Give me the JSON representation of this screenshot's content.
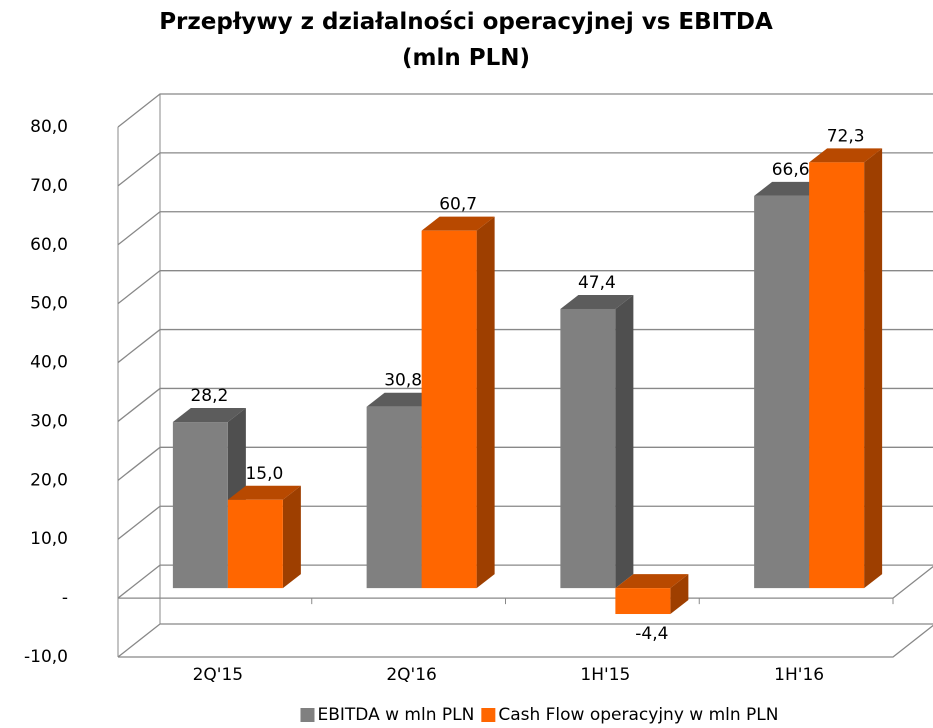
{
  "chart_data": {
    "type": "bar3d",
    "title": "Przepływy z działalności operacyjnej vs EBITDA (mln PLN)",
    "categories": [
      "2Q'15",
      "2Q'16",
      "1H'15",
      "1H'16"
    ],
    "series": [
      {
        "name": "EBITDA w mln PLN",
        "color": "#808080",
        "values": [
          28.2,
          30.8,
          47.4,
          66.6
        ],
        "value_labels": [
          "28,2",
          "30,8",
          "47,4",
          "66,6"
        ]
      },
      {
        "name": "Cash Flow operacyjny w mln PLN",
        "color": "#ff6600",
        "values": [
          15.0,
          60.7,
          -4.4,
          72.3
        ],
        "value_labels": [
          "15,0",
          "60,7",
          "-4,4",
          "72,3"
        ]
      }
    ],
    "ylim": [
      -10,
      80
    ],
    "yticks": [
      {
        "value": -10,
        "label": "-10,0"
      },
      {
        "value": 0,
        "label": "-"
      },
      {
        "value": 10,
        "label": "10,0"
      },
      {
        "value": 20,
        "label": "20,0"
      },
      {
        "value": 30,
        "label": "30,0"
      },
      {
        "value": 40,
        "label": "40,0"
      },
      {
        "value": 50,
        "label": "50,0"
      },
      {
        "value": 60,
        "label": "60,0"
      },
      {
        "value": 70,
        "label": "70,0"
      },
      {
        "value": 80,
        "label": "80,0"
      }
    ],
    "grid": true,
    "legend": "bottom"
  }
}
